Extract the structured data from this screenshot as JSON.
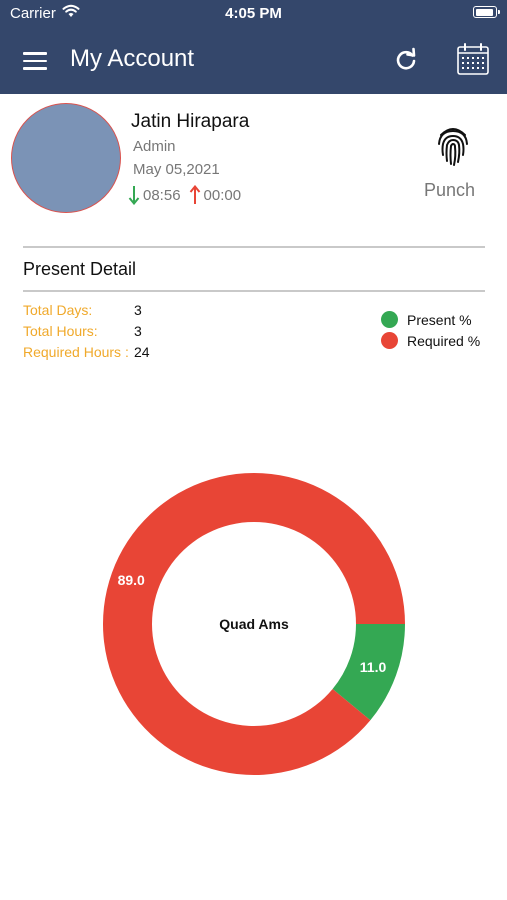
{
  "status_bar": {
    "carrier": "Carrier",
    "time": "4:05 PM"
  },
  "nav": {
    "title": "My Account",
    "icons": [
      "menu-icon",
      "refresh-icon",
      "calendar-icon"
    ]
  },
  "profile": {
    "name": "Jatin Hirapara",
    "role": "Admin",
    "date": "May 05,2021",
    "in_time": "08:56",
    "out_time": "00:00",
    "punch_label": "Punch"
  },
  "present_detail": {
    "title": "Present Detail",
    "stats": [
      {
        "label": "Total Days:",
        "value": "3"
      },
      {
        "label": "Total Hours:",
        "value": "3"
      },
      {
        "label": "Required Hours :",
        "value": "24"
      }
    ]
  },
  "colors": {
    "nav": "#34476b",
    "present": "#34a853",
    "required": "#e84536",
    "stat_label": "#f0a92b"
  },
  "chart_data": {
    "type": "pie",
    "variant": "donut",
    "center_label": "Quad Ams",
    "legend_placement": "top-right",
    "slices": [
      {
        "name": "Present %",
        "value": 11.0,
        "label": "11.0",
        "color": "#34a853"
      },
      {
        "name": "Required %",
        "value": 89.0,
        "label": "89.0",
        "color": "#e84536"
      }
    ]
  }
}
